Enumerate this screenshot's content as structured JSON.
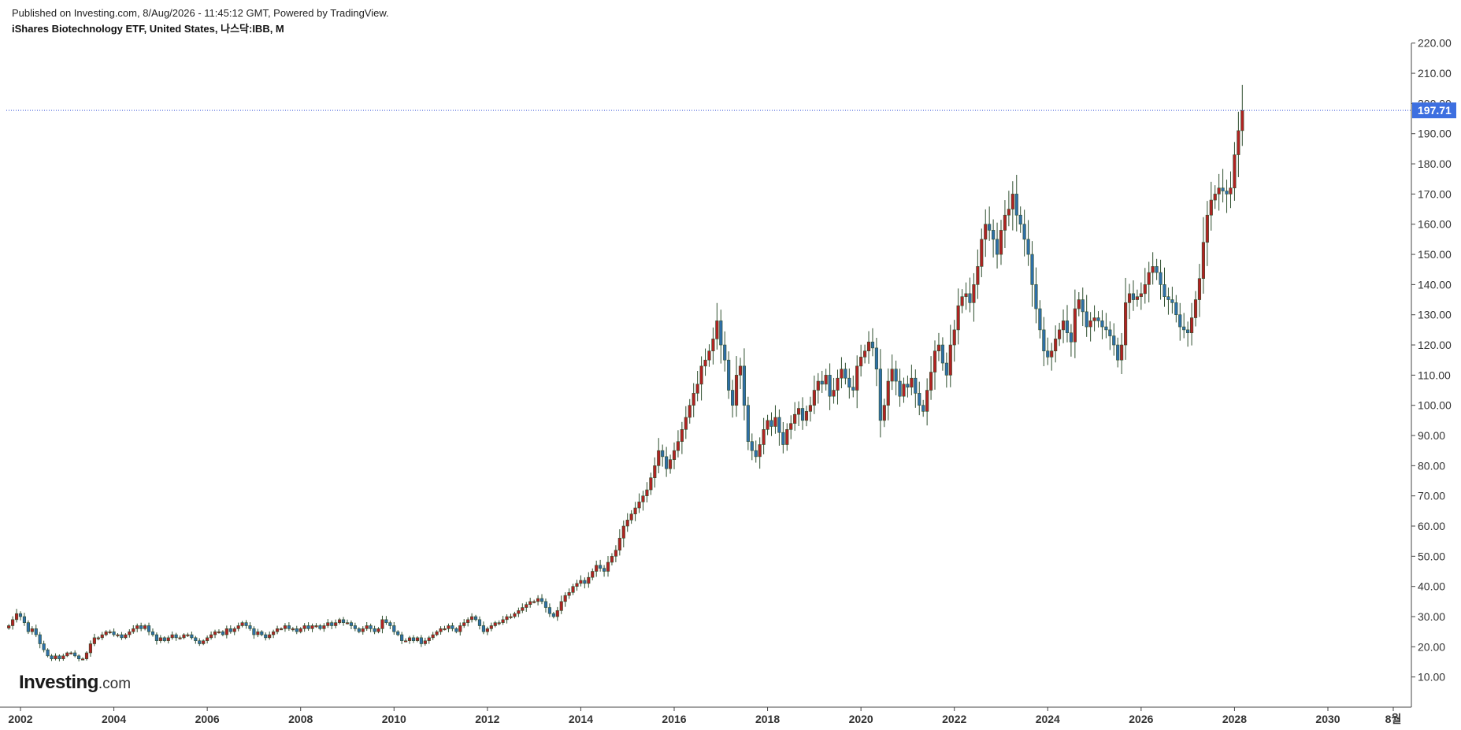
{
  "header": {
    "published": "Published on Investing.com, 8/Aug/2026 - 11:45:12 GMT, Powered by TradingView.",
    "instrument": "iShares Biotechnology ETF, United States, 나스닥:IBB, M"
  },
  "logo": {
    "brand": "Investing",
    "suffix": ".com"
  },
  "colors": {
    "up": "#b22222",
    "down": "#2e6fa8",
    "wick": "#2f4f2f",
    "price_line": "#3d5bd9",
    "price_label_bg": "#3d6fe0"
  },
  "chart_data": {
    "type": "candlestick",
    "title": "iShares Biotechnology ETF, United States, 나스닥:IBB, M",
    "interval": "M",
    "x_tick_labels": [
      "2002",
      "2004",
      "2006",
      "2008",
      "2010",
      "2012",
      "2014",
      "2016",
      "2018",
      "2020",
      "2022",
      "2024",
      "2026",
      "2028",
      "2030",
      "8월"
    ],
    "y_tick_labels": [
      "10.00",
      "20.00",
      "30.00",
      "40.00",
      "50.00",
      "60.00",
      "70.00",
      "80.00",
      "90.00",
      "100.00",
      "110.00",
      "120.00",
      "130.00",
      "140.00",
      "150.00",
      "160.00",
      "170.00",
      "180.00",
      "190.00",
      "200.00",
      "210.00",
      "220.00"
    ],
    "ylim": [
      0,
      222
    ],
    "xlim": [
      2001.8,
      2031.7
    ],
    "axis_position": "right",
    "last_price": 197.71,
    "last_price_label": "197.71",
    "close_series": {
      "start": "2001-10",
      "frequency": "monthly",
      "closes": [
        27,
        29,
        31,
        30,
        28,
        25,
        26,
        24,
        21,
        19,
        17,
        16,
        17,
        16,
        17,
        18,
        18,
        17,
        16,
        16,
        18,
        21,
        23,
        23,
        24,
        25,
        25,
        24,
        24,
        23,
        24,
        25,
        26,
        27,
        26,
        27,
        25,
        24,
        22,
        23,
        22,
        23,
        24,
        23,
        23,
        24,
        24,
        23,
        22,
        21,
        22,
        23,
        24,
        25,
        25,
        24,
        26,
        25,
        26,
        27,
        28,
        27,
        26,
        24,
        25,
        24,
        23,
        24,
        25,
        26,
        26,
        27,
        26,
        26,
        25,
        26,
        27,
        26,
        27,
        27,
        26,
        27,
        28,
        27,
        28,
        29,
        28,
        28,
        27,
        26,
        25,
        26,
        27,
        26,
        25,
        26,
        29,
        28,
        27,
        25,
        24,
        22,
        22,
        23,
        22,
        23,
        21,
        22,
        23,
        24,
        25,
        26,
        26,
        27,
        26,
        25,
        27,
        28,
        29,
        30,
        29,
        27,
        25,
        26,
        27,
        28,
        28,
        29,
        30,
        30,
        31,
        32,
        33,
        34,
        35,
        35,
        36,
        35,
        33,
        31,
        30,
        32,
        35,
        37,
        38,
        40,
        41,
        42,
        41,
        43,
        45,
        47,
        46,
        45,
        48,
        50,
        52,
        56,
        60,
        62,
        64,
        66,
        68,
        70,
        72,
        76,
        80,
        85,
        83,
        79,
        82,
        85,
        88,
        92,
        96,
        100,
        104,
        107,
        113,
        115,
        118,
        122,
        128,
        120,
        115,
        105,
        100,
        110,
        113,
        100,
        88,
        85,
        83,
        87,
        92,
        95,
        93,
        96,
        91,
        87,
        92,
        94,
        97,
        99,
        95,
        98,
        100,
        105,
        108,
        107,
        110,
        103,
        105,
        109,
        112,
        109,
        106,
        105,
        113,
        116,
        118,
        121,
        119,
        112,
        95,
        100,
        108,
        112,
        108,
        103,
        107,
        106,
        109,
        104,
        100,
        98,
        105,
        111,
        118,
        120,
        114,
        110,
        120,
        125,
        133,
        136,
        137,
        134,
        140,
        146,
        155,
        160,
        158,
        155,
        150,
        158,
        163,
        165,
        170,
        163,
        160,
        155,
        150,
        140,
        132,
        125,
        118,
        116,
        118,
        122,
        125,
        128,
        124,
        121,
        132,
        135,
        131,
        126,
        128,
        129,
        128,
        126,
        125,
        123,
        120,
        115,
        120,
        134,
        137,
        135,
        136,
        137,
        140,
        144,
        146,
        144,
        140,
        136,
        135,
        134,
        130,
        126,
        125,
        124,
        129,
        135,
        142,
        154,
        163,
        168,
        170,
        172,
        171,
        170,
        172,
        183,
        191,
        197.71
      ]
    }
  }
}
